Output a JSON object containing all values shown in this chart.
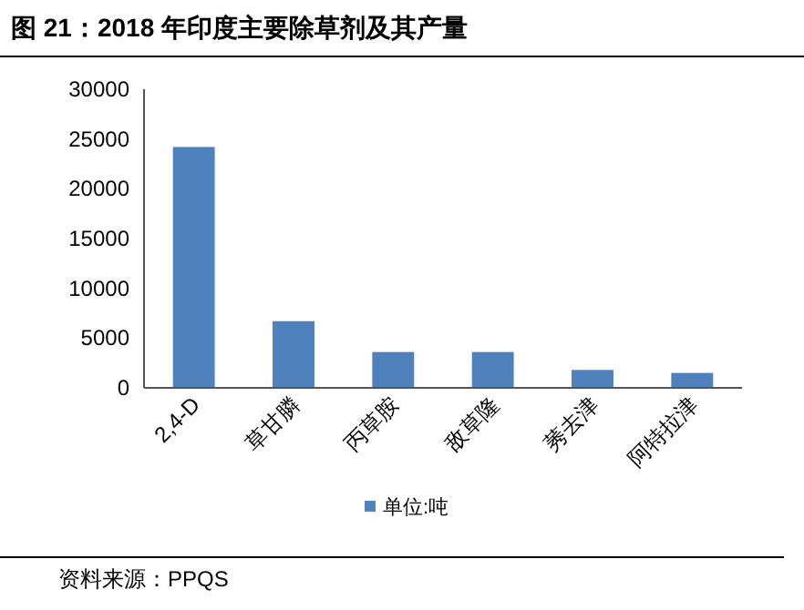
{
  "chart_data": {
    "type": "bar",
    "title": "图 21：2018 年印度主要除草剂及其产量",
    "categories": [
      "2,4-D",
      "草甘膦",
      "丙草胺",
      "敌草隆",
      "莠去津",
      "阿特拉津"
    ],
    "series": [
      {
        "name": "单位:吨",
        "color": "#4f81bd",
        "values": [
          24200,
          6700,
          3600,
          3600,
          1800,
          1500
        ]
      }
    ],
    "ylim": [
      0,
      30000
    ],
    "yticks": [
      0,
      5000,
      10000,
      15000,
      20000,
      25000,
      30000
    ],
    "legend": "bottom",
    "grid": false,
    "annotations": [
      "资料来源：PPQS"
    ]
  }
}
